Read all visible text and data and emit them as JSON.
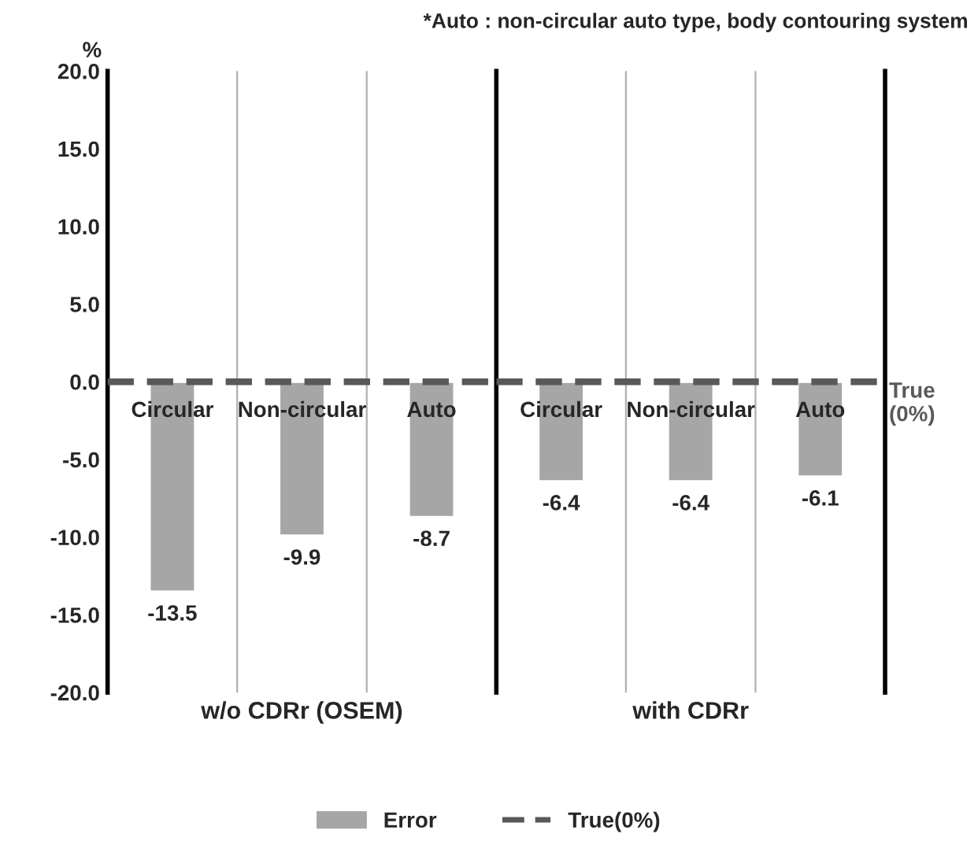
{
  "chart_data": [
    {
      "type": "bar",
      "categories": [
        "Circular",
        "Non-circular",
        "Auto"
      ],
      "series": [
        {
          "name": "Error",
          "color": "#a6a6a6",
          "values": [
            -13.5,
            -9.9,
            -8.7
          ]
        }
      ],
      "xlabel": "w/o CDRr (OSEM)",
      "ylabel": "%",
      "ylim": [
        -20,
        20
      ],
      "yticks": [
        {
          "value": -20,
          "label": "-20.0"
        },
        {
          "value": -15,
          "label": "-15.0"
        },
        {
          "value": -10,
          "label": "-10.0"
        },
        {
          "value": -5,
          "label": "-5.0"
        },
        {
          "value": 0,
          "label": "0.0"
        },
        {
          "value": 5,
          "label": "5.0"
        },
        {
          "value": 10,
          "label": "10.0"
        },
        {
          "value": 15,
          "label": "15.0"
        },
        {
          "value": 20,
          "label": "20.0"
        }
      ],
      "ref_lines": [
        {
          "axis": "y",
          "value": 0,
          "color": "#595959",
          "line_style": "dashed"
        }
      ],
      "annotations": [
        "*Auto : non-circular auto type, body contouring system"
      ],
      "data_labels": true,
      "grid": false
    },
    {
      "type": "bar",
      "categories": [
        "Circular",
        "Non-circular",
        "Auto"
      ],
      "series": [
        {
          "color": "#a6a6a6",
          "values": [
            -6.4,
            -6.4,
            -6.1
          ]
        }
      ],
      "xlabel": "with CDRr",
      "ylim": [
        -20,
        20
      ],
      "ref_lines": [
        {
          "axis": "y",
          "value": 0,
          "label": "True(0%)",
          "color": "#595959",
          "line_style": "dashed"
        }
      ],
      "data_labels": true,
      "legend": "bottom"
    }
  ]
}
